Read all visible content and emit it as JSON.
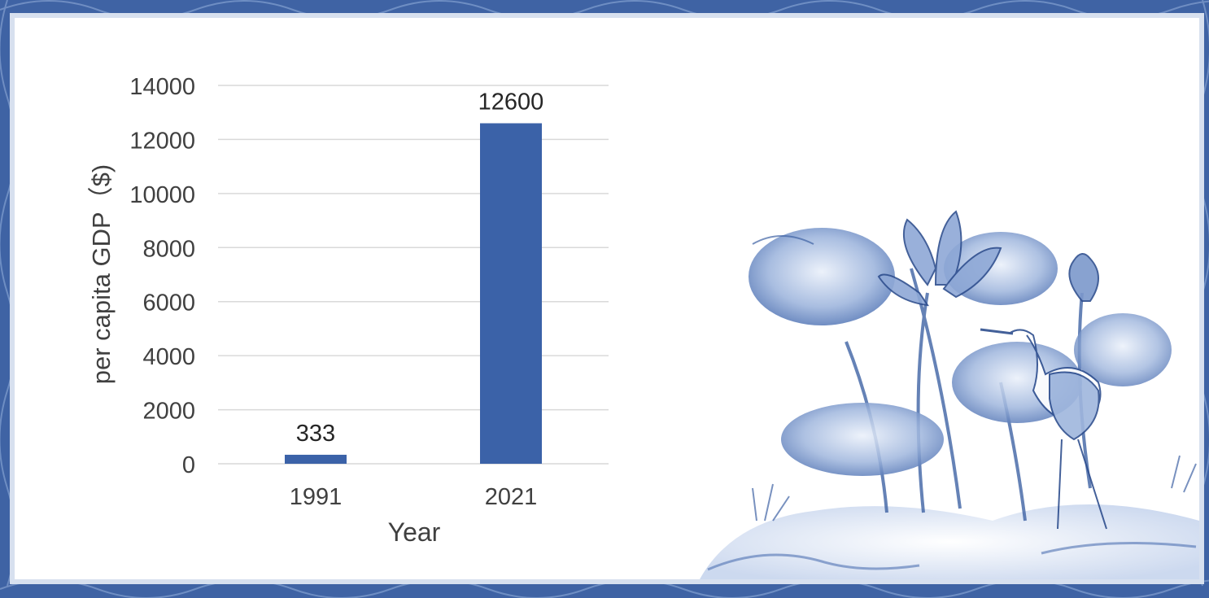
{
  "colors": {
    "frame": "#3f63a4",
    "bar": "#3b62a8",
    "grid": "#d9d9d9",
    "text": "#404040",
    "panel": "#ffffff"
  },
  "decoration": {
    "painting": "blue-and-white lotus and crane ink painting"
  },
  "chart_data": {
    "type": "bar",
    "title": "",
    "xlabel": "Year",
    "ylabel": "per capita GDP（$)",
    "categories": [
      "1991",
      "2021"
    ],
    "values": [
      333,
      12600
    ],
    "data_labels": [
      "333",
      "12600"
    ],
    "ylim": [
      0,
      14000
    ],
    "yticks": [
      "0",
      "2000",
      "4000",
      "6000",
      "8000",
      "10000",
      "12000",
      "14000"
    ],
    "ytick_values": [
      0,
      2000,
      4000,
      6000,
      8000,
      10000,
      12000,
      14000
    ],
    "grid": true,
    "legend": "none"
  }
}
